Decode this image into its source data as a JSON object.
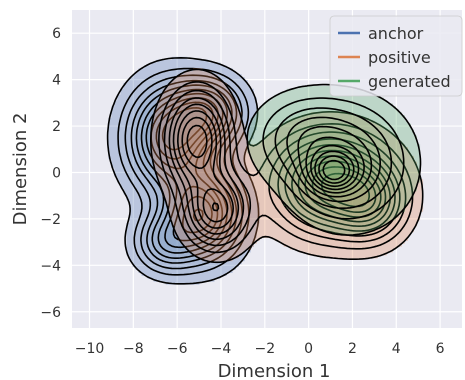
{
  "chart_data": {
    "type": "kde_contour",
    "title": "",
    "xlabel": "Dimension 1",
    "ylabel": "Dimension 2",
    "xlim": [
      -10.8,
      7.0
    ],
    "ylim": [
      -6.7,
      7.0
    ],
    "xticks": [
      -10,
      -8,
      -6,
      -4,
      -2,
      0,
      2,
      4,
      6
    ],
    "yticks": [
      -6,
      -4,
      -2,
      0,
      2,
      4,
      6
    ],
    "grid": true,
    "legend_position": "top-right",
    "series": [
      {
        "name": "anchor",
        "color": "#4c72b0",
        "components": [
          {
            "cx": -6.3,
            "cy": 1.5,
            "sx": 1.2,
            "sy": 1.4,
            "w": 1.0
          },
          {
            "cx": -4.9,
            "cy": -1.8,
            "sx": 1.1,
            "sy": 1.2,
            "w": 0.95
          },
          {
            "cx": -4.6,
            "cy": 2.6,
            "sx": 1.0,
            "sy": 0.9,
            "w": 0.7
          },
          {
            "cx": -6.5,
            "cy": -3.0,
            "sx": 0.9,
            "sy": 0.8,
            "w": 0.45
          }
        ]
      },
      {
        "name": "positive",
        "color": "#dd8452",
        "components": [
          {
            "cx": -5.1,
            "cy": 1.4,
            "sx": 0.9,
            "sy": 1.3,
            "w": 1.0
          },
          {
            "cx": -4.2,
            "cy": -1.6,
            "sx": 0.9,
            "sy": 1.0,
            "w": 0.85
          },
          {
            "cx": 1.0,
            "cy": -0.5,
            "sx": 1.6,
            "sy": 1.3,
            "w": 1.15
          },
          {
            "cx": 2.8,
            "cy": -1.3,
            "sx": 1.0,
            "sy": 1.0,
            "w": 0.6
          }
        ]
      },
      {
        "name": "generated",
        "color": "#55a868",
        "components": [
          {
            "cx": 1.1,
            "cy": 0.0,
            "sx": 0.75,
            "sy": 0.6,
            "w": 1.0
          },
          {
            "cx": 1.8,
            "cy": 0.4,
            "sx": 1.6,
            "sy": 1.5,
            "w": 0.75
          },
          {
            "cx": -0.2,
            "cy": 1.5,
            "sx": 1.4,
            "sy": 1.1,
            "w": 0.45
          }
        ]
      }
    ]
  }
}
